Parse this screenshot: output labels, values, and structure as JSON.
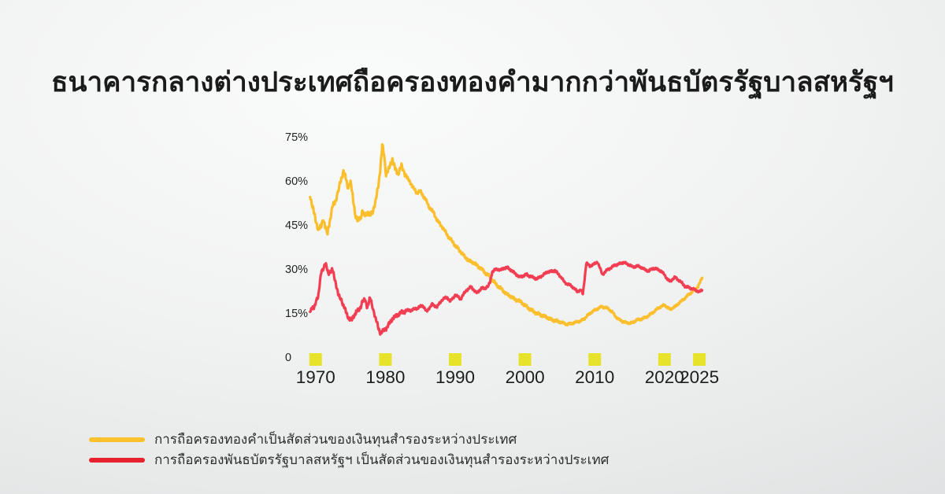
{
  "title": "ธนาคารกลางต่างประเทศถือครองทองคำมากกว่าพันธบัตรรัฐบาลสหรัฐฯ",
  "legend": [
    {
      "label": "การถือครองทองคำเป็นสัดส่วนของเงินทุนสำรองระหว่างประเทศ",
      "swatch_color": "#FCC12C"
    },
    {
      "label": "การถือครองพันธบัตรรัฐบาลสหรัฐฯ เป็นสัดส่วนของเงินทุนสำรองระหว่างประเทศ",
      "swatch_color": "#E8212E"
    }
  ],
  "colors": {
    "background_center": "#fafbfb",
    "background_edge": "#d6d8d9",
    "title_text": "#1b1b1b",
    "axis_text": "#232323",
    "tick_marker": "#E7E32B",
    "gold_line": "#FBBF2D",
    "treasury_line": "#F23E52"
  },
  "chart_data": {
    "type": "line",
    "title": "ธนาคารกลางต่างประเทศถือครองทองคำมากกว่าพันธบัตรรัฐบาลสหรัฐฯ",
    "xlabel": "",
    "ylabel": "",
    "grid": false,
    "legend_position": "bottom-left",
    "xlim": [
      1968.6,
      2026.5
    ],
    "ylim": [
      0,
      76
    ],
    "x_ticks": [
      {
        "year": 1970,
        "label": "1970"
      },
      {
        "year": 1980,
        "label": "1980"
      },
      {
        "year": 1990,
        "label": "1990"
      },
      {
        "year": 2000,
        "label": "2000"
      },
      {
        "year": 2010,
        "label": "2010"
      },
      {
        "year": 2020,
        "label": "2020"
      },
      {
        "year": 2025,
        "label": "2025"
      }
    ],
    "y_ticks": [
      {
        "value": 75,
        "label": "75%"
      },
      {
        "value": 60,
        "label": "60%"
      },
      {
        "value": 45,
        "label": "45%"
      },
      {
        "value": 30,
        "label": "30%"
      },
      {
        "value": 15,
        "label": "15%"
      },
      {
        "value": 0,
        "label": "0"
      }
    ],
    "tick_marker_color": "#E7E32B",
    "series": [
      {
        "id": "gold",
        "name": "การถือครองทองคำเป็นสัดส่วนของเงินทุนสำรองระหว่างประเทศ",
        "color": "#FBBF2D",
        "noise_texture": {
          "early": 1.05,
          "mid": 0.65,
          "late": 0.45
        },
        "points": [
          [
            1969.2,
            55
          ],
          [
            1969.6,
            51
          ],
          [
            1970.0,
            46.5
          ],
          [
            1970.4,
            43.5
          ],
          [
            1970.8,
            44.5
          ],
          [
            1971.1,
            47.5
          ],
          [
            1971.4,
            44
          ],
          [
            1971.7,
            42
          ],
          [
            1972.0,
            46
          ],
          [
            1972.4,
            51
          ],
          [
            1972.8,
            53
          ],
          [
            1973.2,
            56
          ],
          [
            1973.6,
            60
          ],
          [
            1974.0,
            63.5
          ],
          [
            1974.3,
            61
          ],
          [
            1974.6,
            58
          ],
          [
            1975.0,
            59.5
          ],
          [
            1975.3,
            55
          ],
          [
            1975.7,
            48.5
          ],
          [
            1976.0,
            46.5
          ],
          [
            1976.4,
            47.5
          ],
          [
            1976.7,
            49.5
          ],
          [
            1977.0,
            48
          ],
          [
            1977.4,
            49.5
          ],
          [
            1977.8,
            48
          ],
          [
            1978.2,
            50
          ],
          [
            1978.6,
            53
          ],
          [
            1979.0,
            58.5
          ],
          [
            1979.3,
            65
          ],
          [
            1979.55,
            72
          ],
          [
            1979.8,
            69
          ],
          [
            1980.1,
            62.5
          ],
          [
            1980.5,
            64
          ],
          [
            1981.0,
            67.5
          ],
          [
            1981.4,
            64
          ],
          [
            1981.8,
            62.5
          ],
          [
            1982.3,
            65
          ],
          [
            1982.7,
            63
          ],
          [
            1983.1,
            61
          ],
          [
            1983.6,
            59.5
          ],
          [
            1984.0,
            57.5
          ],
          [
            1984.5,
            56
          ],
          [
            1985.0,
            56.5
          ],
          [
            1985.4,
            55
          ],
          [
            1985.8,
            53.5
          ],
          [
            1986.3,
            51
          ],
          [
            1986.9,
            49.3
          ],
          [
            1987.4,
            46.6
          ],
          [
            1988.0,
            44.8
          ],
          [
            1988.6,
            42.6
          ],
          [
            1989.1,
            40.8
          ],
          [
            1989.7,
            39
          ],
          [
            1990.3,
            37.2
          ],
          [
            1990.8,
            35.9
          ],
          [
            1991.4,
            34.1
          ],
          [
            1992.0,
            32.8
          ],
          [
            1992.5,
            32.3
          ],
          [
            1993.0,
            31.5
          ],
          [
            1993.5,
            30.5
          ],
          [
            1994.0,
            29.5
          ],
          [
            1994.5,
            28.3
          ],
          [
            1995.0,
            27.3
          ],
          [
            1995.3,
            26.3
          ],
          [
            1996.0,
            24.5
          ],
          [
            1996.5,
            23.5
          ],
          [
            1997.0,
            22.3
          ],
          [
            1997.5,
            21.3
          ],
          [
            1998.0,
            20.6
          ],
          [
            1998.5,
            19.8
          ],
          [
            1999.0,
            19.2
          ],
          [
            1999.5,
            18.8
          ],
          [
            2000.0,
            17.5
          ],
          [
            2000.5,
            16.8
          ],
          [
            2001.0,
            15.8
          ],
          [
            2001.5,
            15.2
          ],
          [
            2002.0,
            14.6
          ],
          [
            2002.5,
            14.2
          ],
          [
            2003.0,
            13.7
          ],
          [
            2003.5,
            13.1
          ],
          [
            2004.0,
            12.6
          ],
          [
            2004.5,
            12.3
          ],
          [
            2005.0,
            12
          ],
          [
            2005.5,
            11.6
          ],
          [
            2006.0,
            11.2
          ],
          [
            2006.5,
            11.3
          ],
          [
            2007.0,
            11.7
          ],
          [
            2007.5,
            12
          ],
          [
            2008.0,
            12.4
          ],
          [
            2008.5,
            13
          ],
          [
            2009.0,
            14.3
          ],
          [
            2009.5,
            15.2
          ],
          [
            2010.0,
            16
          ],
          [
            2010.5,
            16.6
          ],
          [
            2011.0,
            17.2
          ],
          [
            2011.5,
            16.9
          ],
          [
            2012.0,
            16.4
          ],
          [
            2012.5,
            15.4
          ],
          [
            2013.0,
            13.8
          ],
          [
            2013.5,
            12.8
          ],
          [
            2014.0,
            12.1
          ],
          [
            2014.5,
            11.8
          ],
          [
            2015.0,
            11.5
          ],
          [
            2015.5,
            11.9
          ],
          [
            2016.0,
            12.6
          ],
          [
            2016.5,
            12.9
          ],
          [
            2017.0,
            13.2
          ],
          [
            2017.5,
            13.8
          ],
          [
            2018.0,
            14.6
          ],
          [
            2018.5,
            15.5
          ],
          [
            2019.0,
            16.5
          ],
          [
            2019.5,
            17.2
          ],
          [
            2020.0,
            17.8
          ],
          [
            2020.4,
            16.9
          ],
          [
            2020.8,
            16.3
          ],
          [
            2021.2,
            16.8
          ],
          [
            2021.6,
            17.3
          ],
          [
            2022.0,
            18.3
          ],
          [
            2022.5,
            19.2
          ],
          [
            2023.0,
            20.3
          ],
          [
            2023.5,
            21.3
          ],
          [
            2024.0,
            22.3
          ],
          [
            2024.4,
            23
          ],
          [
            2024.8,
            24
          ],
          [
            2025.1,
            25.5
          ],
          [
            2025.4,
            27
          ]
        ]
      },
      {
        "id": "us_treasuries",
        "name": "การถือครองพันธบัตรรัฐบาลสหรัฐฯ เป็นสัดส่วนของเงินทุนสำรองระหว่างประเทศ",
        "color": "#F23E52",
        "noise_texture": {
          "early": 0.85,
          "mid": 0.5,
          "late": 0.45
        },
        "points": [
          [
            1969.2,
            15.8
          ],
          [
            1969.5,
            17
          ],
          [
            1969.8,
            16.5
          ],
          [
            1970.1,
            19.5
          ],
          [
            1970.4,
            21.2
          ],
          [
            1970.8,
            28.8
          ],
          [
            1971.1,
            30.5
          ],
          [
            1971.4,
            31.9
          ],
          [
            1971.8,
            28.5
          ],
          [
            1972.1,
            29.3
          ],
          [
            1972.4,
            29.7
          ],
          [
            1972.9,
            25.2
          ],
          [
            1973.3,
            20.7
          ],
          [
            1973.7,
            19.4
          ],
          [
            1974.1,
            17.1
          ],
          [
            1974.4,
            14.9
          ],
          [
            1974.8,
            13.1
          ],
          [
            1975.2,
            12.7
          ],
          [
            1975.8,
            15.4
          ],
          [
            1976.3,
            16.3
          ],
          [
            1976.7,
            18.9
          ],
          [
            1977.1,
            19.4
          ],
          [
            1977.4,
            17.1
          ],
          [
            1977.8,
            20
          ],
          [
            1978.2,
            17
          ],
          [
            1978.6,
            13
          ],
          [
            1979.0,
            10
          ],
          [
            1979.3,
            8.2
          ],
          [
            1979.7,
            8.8
          ],
          [
            1980.1,
            9.8
          ],
          [
            1980.6,
            11.5
          ],
          [
            1981.0,
            13.1
          ],
          [
            1981.5,
            14
          ],
          [
            1982.0,
            14.8
          ],
          [
            1982.5,
            15.4
          ],
          [
            1983.0,
            15.8
          ],
          [
            1983.6,
            16
          ],
          [
            1984.2,
            16.3
          ],
          [
            1984.8,
            17
          ],
          [
            1985.4,
            17.6
          ],
          [
            1985.9,
            15.4
          ],
          [
            1986.3,
            16.8
          ],
          [
            1986.7,
            18
          ],
          [
            1987.0,
            17.5
          ],
          [
            1987.4,
            17.1
          ],
          [
            1988.2,
            19.8
          ],
          [
            1988.9,
            20.3
          ],
          [
            1989.3,
            18.9
          ],
          [
            1990.0,
            21.2
          ],
          [
            1990.8,
            19.8
          ],
          [
            1991.5,
            22.5
          ],
          [
            1992.3,
            24
          ],
          [
            1993.0,
            21.8
          ],
          [
            1993.8,
            23.4
          ],
          [
            1994.3,
            23.6
          ],
          [
            1994.7,
            24
          ],
          [
            1995.0,
            25.5
          ],
          [
            1995.3,
            29
          ],
          [
            1996.0,
            30.1
          ],
          [
            1996.5,
            29.6
          ],
          [
            1997.0,
            30.3
          ],
          [
            1997.5,
            30.5
          ],
          [
            1998.1,
            29.4
          ],
          [
            1998.7,
            28.3
          ],
          [
            1999.2,
            27.2
          ],
          [
            1999.7,
            27.7
          ],
          [
            2000.3,
            28.1
          ],
          [
            2001.0,
            27.2
          ],
          [
            2001.8,
            26.7
          ],
          [
            2002.5,
            27.8
          ],
          [
            2003.2,
            29
          ],
          [
            2004.3,
            29.4
          ],
          [
            2005.0,
            27.8
          ],
          [
            2005.7,
            25.4
          ],
          [
            2006.2,
            24.8
          ],
          [
            2006.8,
            24
          ],
          [
            2007.5,
            22.3
          ],
          [
            2008.0,
            23
          ],
          [
            2008.3,
            21.4
          ],
          [
            2008.8,
            32.1
          ],
          [
            2009.3,
            31
          ],
          [
            2009.8,
            31.5
          ],
          [
            2010.4,
            32.5
          ],
          [
            2011.1,
            28.1
          ],
          [
            2011.6,
            29.3
          ],
          [
            2012.2,
            30.3
          ],
          [
            2013.0,
            31.4
          ],
          [
            2013.6,
            31.8
          ],
          [
            2014.2,
            32.3
          ],
          [
            2014.8,
            31.5
          ],
          [
            2015.5,
            30.7
          ],
          [
            2016.1,
            31
          ],
          [
            2016.6,
            30.7
          ],
          [
            2017.2,
            29.7
          ],
          [
            2017.8,
            29.4
          ],
          [
            2018.4,
            30.3
          ],
          [
            2018.9,
            30
          ],
          [
            2019.5,
            29.3
          ],
          [
            2020.0,
            28.1
          ],
          [
            2020.4,
            26.5
          ],
          [
            2020.8,
            25.8
          ],
          [
            2021.2,
            26.6
          ],
          [
            2021.5,
            27.2
          ],
          [
            2022.0,
            26.3
          ],
          [
            2022.5,
            25.2
          ],
          [
            2023.0,
            24
          ],
          [
            2023.5,
            23.7
          ],
          [
            2024.0,
            23.3
          ],
          [
            2024.5,
            22.7
          ],
          [
            2025.0,
            22.3
          ],
          [
            2025.4,
            22.8
          ]
        ]
      }
    ]
  }
}
